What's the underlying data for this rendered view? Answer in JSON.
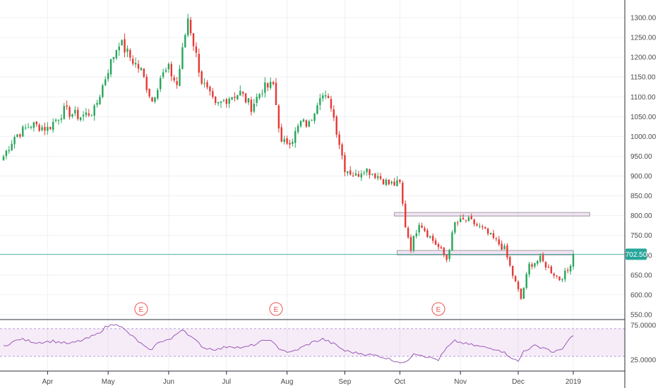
{
  "chart_data": {
    "type": "candlestick",
    "price_axis": {
      "ticks": [
        "1300.00",
        "1250.00",
        "1200.00",
        "1150.00",
        "1100.00",
        "1050.00",
        "1000.00",
        "950.00",
        "900.00",
        "850.00",
        "800.00",
        "750.00",
        "700.00",
        "650.00",
        "600.00",
        "550.00"
      ],
      "ylim": [
        535,
        1320
      ]
    },
    "time_axis": {
      "labels": [
        "Apr",
        "May",
        "Jun",
        "Jul",
        "Aug",
        "Sep",
        "Oct",
        "Nov",
        "Dec",
        "2019"
      ],
      "label_day_index": [
        16,
        38,
        60,
        81,
        103,
        124,
        144,
        166,
        187,
        207
      ],
      "n_days": 215
    },
    "last_price": {
      "value": 702.5,
      "label": "702.50",
      "color": "#26a69a"
    },
    "up_color": "#26a65b",
    "down_color": "#e53935",
    "anchors": [
      [
        0,
        950
      ],
      [
        4,
        1000
      ],
      [
        10,
        1030
      ],
      [
        16,
        1020
      ],
      [
        22,
        1065
      ],
      [
        28,
        1050
      ],
      [
        33,
        1065
      ],
      [
        38,
        1170
      ],
      [
        42,
        1240
      ],
      [
        46,
        1200
      ],
      [
        50,
        1165
      ],
      [
        54,
        1090
      ],
      [
        57,
        1150
      ],
      [
        60,
        1170
      ],
      [
        63,
        1130
      ],
      [
        67,
        1300
      ],
      [
        72,
        1140
      ],
      [
        77,
        1075
      ],
      [
        82,
        1100
      ],
      [
        86,
        1110
      ],
      [
        90,
        1075
      ],
      [
        94,
        1120
      ],
      [
        98,
        1130
      ],
      [
        101,
        980
      ],
      [
        105,
        995
      ],
      [
        108,
        1035
      ],
      [
        111,
        1030
      ],
      [
        115,
        1110
      ],
      [
        119,
        1080
      ],
      [
        124,
        920
      ],
      [
        128,
        900
      ],
      [
        131,
        920
      ],
      [
        136,
        900
      ],
      [
        140,
        880
      ],
      [
        144,
        880
      ],
      [
        146,
        775
      ],
      [
        148,
        720
      ],
      [
        151,
        785
      ],
      [
        154,
        755
      ],
      [
        158,
        720
      ],
      [
        161,
        690
      ],
      [
        164,
        780
      ],
      [
        168,
        790
      ],
      [
        171,
        780
      ],
      [
        175,
        760
      ],
      [
        179,
        735
      ],
      [
        182,
        715
      ],
      [
        185,
        650
      ],
      [
        188,
        590
      ],
      [
        191,
        675
      ],
      [
        195,
        690
      ],
      [
        199,
        660
      ],
      [
        202,
        640
      ],
      [
        205,
        660
      ],
      [
        207,
        702.5
      ]
    ],
    "events": [
      {
        "label": "E",
        "day": 50
      },
      {
        "label": "E",
        "day": 99
      },
      {
        "label": "E",
        "day": 158
      }
    ],
    "zones": [
      {
        "from_day": 142,
        "to_day": 213,
        "top": 808,
        "bottom": 799
      },
      {
        "from_day": 143,
        "to_day": 207,
        "top": 712,
        "bottom": 701
      }
    ],
    "rsi": {
      "ticks": [
        "75.0000",
        "25.0000"
      ],
      "tick_values": [
        75,
        25
      ],
      "range": [
        12,
        82
      ],
      "band": [
        30,
        70
      ],
      "anchors": [
        [
          0,
          45
        ],
        [
          6,
          55
        ],
        [
          12,
          50
        ],
        [
          18,
          52
        ],
        [
          24,
          48
        ],
        [
          30,
          55
        ],
        [
          34,
          62
        ],
        [
          37,
          72
        ],
        [
          41,
          78
        ],
        [
          44,
          68
        ],
        [
          48,
          55
        ],
        [
          53,
          38
        ],
        [
          57,
          52
        ],
        [
          61,
          55
        ],
        [
          65,
          70
        ],
        [
          69,
          55
        ],
        [
          73,
          42
        ],
        [
          78,
          40
        ],
        [
          82,
          45
        ],
        [
          87,
          42
        ],
        [
          92,
          48
        ],
        [
          96,
          55
        ],
        [
          100,
          42
        ],
        [
          104,
          35
        ],
        [
          108,
          42
        ],
        [
          112,
          50
        ],
        [
          116,
          55
        ],
        [
          120,
          48
        ],
        [
          124,
          38
        ],
        [
          128,
          35
        ],
        [
          132,
          33
        ],
        [
          137,
          30
        ],
        [
          141,
          25
        ],
        [
          144,
          22
        ],
        [
          146,
          20
        ],
        [
          149,
          35
        ],
        [
          152,
          32
        ],
        [
          155,
          28
        ],
        [
          158,
          25
        ],
        [
          161,
          42
        ],
        [
          164,
          52
        ],
        [
          168,
          48
        ],
        [
          172,
          45
        ],
        [
          176,
          42
        ],
        [
          180,
          40
        ],
        [
          184,
          30
        ],
        [
          187,
          22
        ],
        [
          189,
          38
        ],
        [
          193,
          45
        ],
        [
          197,
          42
        ],
        [
          200,
          35
        ],
        [
          203,
          42
        ],
        [
          207,
          60
        ]
      ],
      "color": "#9b59b6"
    }
  }
}
